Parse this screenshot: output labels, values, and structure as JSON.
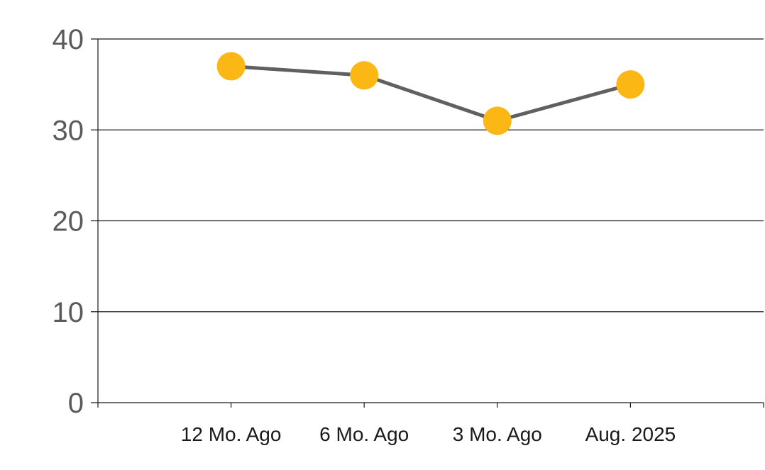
{
  "chart_data": {
    "type": "line",
    "categories": [
      "12 Mo. Ago",
      "6 Mo. Ago",
      "3 Mo. Ago",
      "Aug. 2025"
    ],
    "series": [
      {
        "values": [
          37,
          36,
          31,
          35
        ]
      }
    ],
    "ylim": [
      0,
      40
    ],
    "yticks": [
      0,
      10,
      20,
      30,
      40
    ],
    "grid": true,
    "legend": "none",
    "colors": {
      "line": "#606060",
      "marker": "#FBB714",
      "grid": "#1a1a1a",
      "y_tick_text": "#5a5a5a",
      "x_tick_text": "#1a1a1a"
    }
  }
}
